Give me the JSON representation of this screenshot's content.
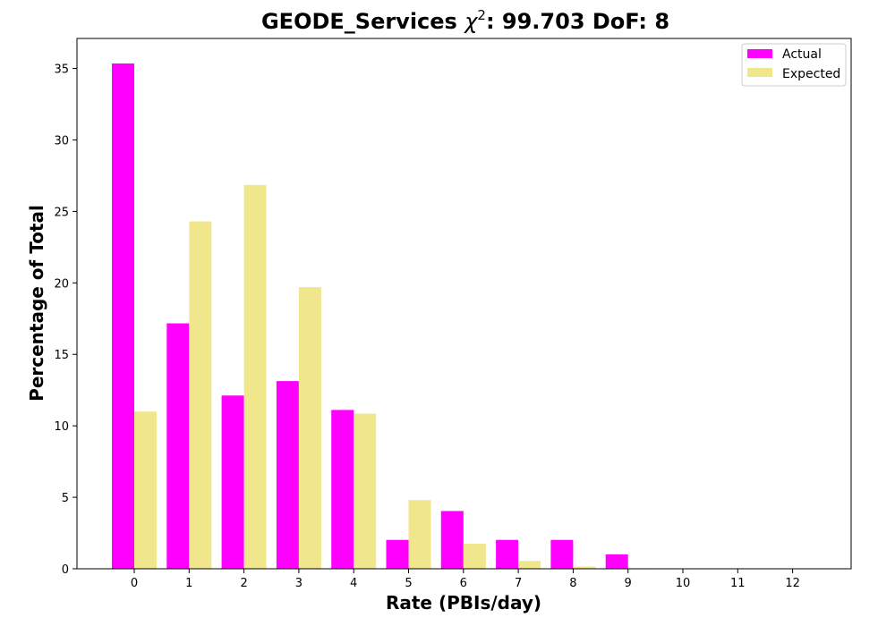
{
  "chart_data": {
    "type": "bar",
    "title_main": "GEODE_Services ",
    "title_chi": "χ",
    "title_sup": "2",
    "title_rest": ": 99.703 DoF: 8",
    "xlabel": "Rate (PBIs/day)",
    "ylabel": "Percentage of Total",
    "categories": [
      "0",
      "1",
      "2",
      "3",
      "4",
      "5",
      "6",
      "7",
      "8",
      "9",
      "10",
      "11",
      "12"
    ],
    "series": [
      {
        "name": "Actual",
        "color": "#ff00ff",
        "values": [
          35.35,
          17.17,
          12.12,
          13.13,
          11.11,
          2.02,
          4.04,
          2.02,
          2.02,
          1.01,
          0,
          0,
          0
        ]
      },
      {
        "name": "Expected",
        "color": "#f0e68c",
        "values": [
          11.0,
          24.3,
          26.85,
          19.7,
          10.85,
          4.8,
          1.75,
          0.55,
          0.15,
          0.04,
          0.01,
          0,
          0
        ]
      }
    ],
    "ylim": [
      0,
      37.1
    ],
    "yticks": [
      0,
      5,
      10,
      15,
      20,
      25,
      30,
      35
    ],
    "legend": "top-right",
    "grid": false
  }
}
